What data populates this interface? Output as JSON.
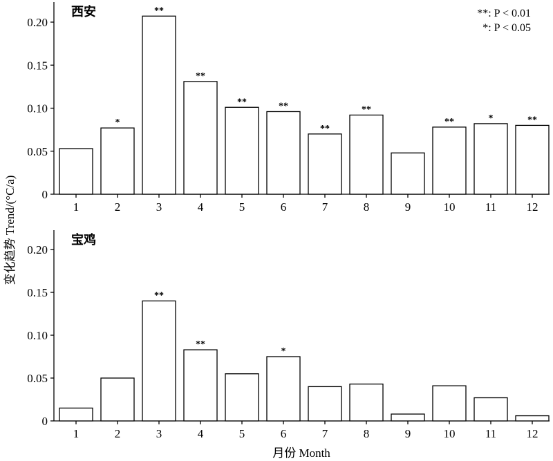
{
  "chart_data": [
    {
      "type": "bar",
      "title": "西安",
      "categories": [
        "1",
        "2",
        "3",
        "4",
        "5",
        "6",
        "7",
        "8",
        "9",
        "10",
        "11",
        "12"
      ],
      "values": [
        0.053,
        0.077,
        0.207,
        0.131,
        0.101,
        0.096,
        0.07,
        0.092,
        0.048,
        0.078,
        0.082,
        0.08
      ],
      "significance": [
        "",
        "*",
        "**",
        "**",
        "**",
        "**",
        "**",
        "**",
        "",
        "**",
        "*",
        "**"
      ],
      "ylim": [
        0,
        0.22
      ],
      "yticks": [
        "0",
        "0.05",
        "0.10",
        "0.15",
        "0.20"
      ],
      "legend": [
        "**: P < 0.01",
        "*: P < 0.05"
      ],
      "legend_position": "top-right",
      "grid": false
    },
    {
      "type": "bar",
      "title": "宝鸡",
      "categories": [
        "1",
        "2",
        "3",
        "4",
        "5",
        "6",
        "7",
        "8",
        "9",
        "10",
        "11",
        "12"
      ],
      "values": [
        0.015,
        0.05,
        0.14,
        0.083,
        0.055,
        0.075,
        0.04,
        0.043,
        0.008,
        0.041,
        0.027,
        0.006
      ],
      "significance": [
        "",
        "",
        "**",
        "**",
        "",
        "*",
        "",
        "",
        "",
        "",
        "",
        ""
      ],
      "ylim": [
        0,
        0.22
      ],
      "yticks": [
        "0",
        "0.05",
        "0.10",
        "0.15",
        "0.20"
      ],
      "grid": false
    }
  ],
  "ylabel": "变化趋势 Trend/(°C/a)",
  "xlabel": "月份 Month"
}
